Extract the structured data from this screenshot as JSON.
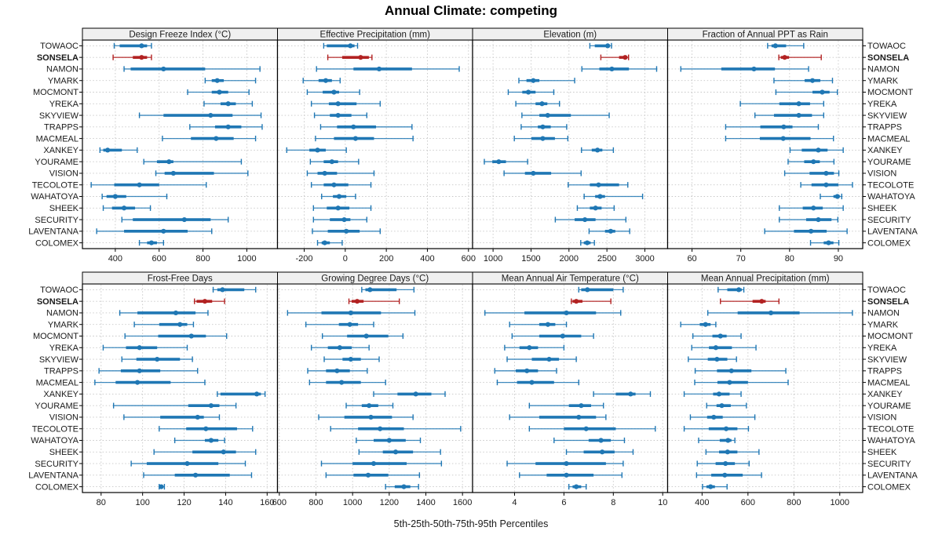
{
  "title": "Annual Climate: competing",
  "xlabel": "5th-25th-50th-75th-95th Percentiles",
  "chart_data": {
    "type": "dot-whisker-trellis",
    "title": "Annual Climate: competing",
    "xlabel": "5th-25th-50th-75th-95th Percentiles",
    "percentiles": [
      5,
      25,
      50,
      75,
      95
    ],
    "highlight_station": "SONSELA",
    "colors": {
      "series": "#1f77b4",
      "highlight": "#b22222",
      "grid": "#c6c6c6",
      "header_bg": "#f0f0f0",
      "border": "#000000",
      "label": "#1a1a1a"
    },
    "layout": {
      "rows": 2,
      "cols": 4,
      "grid": "dotted",
      "legend": "none",
      "station_labels": "both-sides"
    },
    "stations": [
      "TOWAOC",
      "SONSELA",
      "NAMON",
      "YMARK",
      "MOCMONT",
      "YREKA",
      "SKYVIEW",
      "TRAPPS",
      "MACMEAL",
      "XANKEY",
      "YOURAME",
      "VISION",
      "TECOLOTE",
      "WAHATOYA",
      "SHEEK",
      "SECURITY",
      "LAVENTANA",
      "COLOMEX"
    ],
    "panels": [
      {
        "title": "Design Freeze Index (°C)",
        "xlim": [
          250,
          1140
        ],
        "ticks": [
          400,
          600,
          800,
          1000
        ],
        "values": [
          [
            395,
            420,
            520,
            545,
            565
          ],
          [
            390,
            480,
            520,
            545,
            565
          ],
          [
            440,
            470,
            620,
            810,
            1060
          ],
          [
            810,
            840,
            865,
            895,
            1040
          ],
          [
            730,
            840,
            875,
            915,
            1010
          ],
          [
            805,
            880,
            915,
            950,
            1025
          ],
          [
            510,
            620,
            835,
            935,
            1065
          ],
          [
            740,
            855,
            915,
            975,
            1070
          ],
          [
            615,
            745,
            860,
            940,
            1040
          ],
          [
            330,
            345,
            365,
            430,
            500
          ],
          [
            530,
            590,
            645,
            665,
            975
          ],
          [
            585,
            625,
            665,
            850,
            1005
          ],
          [
            290,
            395,
            510,
            600,
            815
          ],
          [
            340,
            360,
            400,
            450,
            635
          ],
          [
            345,
            385,
            440,
            490,
            560
          ],
          [
            430,
            480,
            715,
            835,
            915
          ],
          [
            315,
            440,
            620,
            730,
            840
          ],
          [
            510,
            545,
            565,
            590,
            620
          ]
        ]
      },
      {
        "title": "Effective Precipitation (mm)",
        "xlim": [
          -330,
          620
        ],
        "ticks": [
          -200,
          0,
          200,
          400,
          600
        ],
        "values": [
          [
            -105,
            -90,
            25,
            45,
            60
          ],
          [
            -85,
            -15,
            75,
            115,
            130
          ],
          [
            -140,
            40,
            165,
            325,
            555
          ],
          [
            -205,
            -130,
            -95,
            -65,
            -25
          ],
          [
            -185,
            -110,
            -55,
            -30,
            70
          ],
          [
            -165,
            -80,
            -35,
            55,
            170
          ],
          [
            -150,
            -75,
            -35,
            30,
            105
          ],
          [
            -120,
            -40,
            40,
            150,
            325
          ],
          [
            -145,
            -55,
            50,
            140,
            330
          ],
          [
            -285,
            -175,
            -135,
            -95,
            5
          ],
          [
            -170,
            -105,
            -65,
            -35,
            65
          ],
          [
            -185,
            -135,
            -100,
            -40,
            140
          ],
          [
            -165,
            -105,
            -55,
            15,
            125
          ],
          [
            -115,
            -60,
            -30,
            5,
            50
          ],
          [
            -155,
            -90,
            -35,
            20,
            125
          ],
          [
            -155,
            -75,
            -5,
            25,
            105
          ],
          [
            -160,
            -85,
            5,
            70,
            170
          ],
          [
            -135,
            -115,
            -100,
            -75,
            -15
          ]
        ]
      },
      {
        "title": "Elevation (m)",
        "xlim": [
          730,
          3300
        ],
        "ticks": [
          1000,
          1500,
          2000,
          2500,
          3000
        ],
        "values": [
          [
            2275,
            2340,
            2510,
            2540,
            2560
          ],
          [
            2420,
            2660,
            2740,
            2770,
            2785
          ],
          [
            2170,
            2400,
            2565,
            2790,
            3155
          ],
          [
            1340,
            1440,
            1530,
            1610,
            2075
          ],
          [
            1200,
            1385,
            1465,
            1560,
            1800
          ],
          [
            1300,
            1560,
            1645,
            1715,
            1875
          ],
          [
            1380,
            1610,
            1720,
            2025,
            2530
          ],
          [
            1370,
            1590,
            1655,
            1760,
            1970
          ],
          [
            1280,
            1505,
            1655,
            1815,
            1985
          ],
          [
            2165,
            2300,
            2375,
            2440,
            2585
          ],
          [
            885,
            990,
            1075,
            1170,
            1455
          ],
          [
            1145,
            1420,
            1530,
            1765,
            2160
          ],
          [
            1990,
            2275,
            2390,
            2660,
            2775
          ],
          [
            2200,
            2345,
            2410,
            2475,
            2970
          ],
          [
            2110,
            2275,
            2350,
            2430,
            2595
          ],
          [
            1820,
            2075,
            2210,
            2350,
            2750
          ],
          [
            2265,
            2475,
            2550,
            2610,
            2800
          ],
          [
            2155,
            2195,
            2240,
            2285,
            2335
          ]
        ]
      },
      {
        "title": "Fraction of Annual PPT as Rain",
        "xlim": [
          55,
          95
        ],
        "ticks": [
          60,
          70,
          80,
          90
        ],
        "values": [
          [
            75.5,
            76.3,
            77.1,
            79.3,
            82.9
          ],
          [
            77.8,
            78.2,
            79.0,
            79.9,
            86.5
          ],
          [
            57.7,
            66.0,
            72.7,
            77.0,
            83.9
          ],
          [
            76.8,
            83.1,
            84.7,
            86.3,
            88.8
          ],
          [
            77.2,
            84.7,
            86.7,
            88.2,
            89.8
          ],
          [
            69.9,
            77.9,
            81.9,
            84.2,
            87.0
          ],
          [
            72.9,
            76.8,
            81.9,
            84.6,
            87.0
          ],
          [
            66.9,
            74.0,
            78.8,
            80.6,
            85.9
          ],
          [
            66.9,
            73.9,
            78.7,
            84.3,
            89.0
          ],
          [
            80.1,
            82.5,
            85.9,
            87.8,
            91.0
          ],
          [
            79.7,
            83.0,
            84.9,
            86.2,
            89.1
          ],
          [
            79.0,
            84.1,
            87.5,
            89.1,
            90.1
          ],
          [
            82.3,
            84.5,
            87.5,
            90.0,
            92.9
          ],
          [
            86.3,
            89.0,
            89.8,
            90.3,
            90.7
          ],
          [
            77.9,
            82.7,
            84.9,
            86.8,
            91.0
          ],
          [
            77.9,
            83.4,
            85.9,
            88.6,
            89.9
          ],
          [
            74.9,
            80.9,
            84.4,
            87.6,
            91.8
          ],
          [
            84.3,
            87.0,
            88.0,
            89.0,
            90.1
          ]
        ]
      },
      {
        "title": "Frost-Free Days",
        "xlim": [
          71,
          165
        ],
        "ticks": [
          80,
          100,
          120,
          140,
          160
        ],
        "values": [
          [
            134,
            136,
            138.5,
            149,
            154.5
          ],
          [
            125,
            126,
            130,
            133.5,
            139.5
          ],
          [
            89,
            97.5,
            116,
            125.5,
            131.5
          ],
          [
            96,
            108,
            118,
            121.5,
            124.5
          ],
          [
            91.5,
            107.5,
            123.5,
            130.5,
            140.5
          ],
          [
            81,
            92,
            98.5,
            107,
            121.5
          ],
          [
            90,
            97,
            107,
            118,
            124
          ],
          [
            79,
            89.5,
            98.5,
            108.5,
            126.5
          ],
          [
            77,
            87,
            97.5,
            113.5,
            130
          ],
          [
            136,
            137.5,
            155,
            157,
            159
          ],
          [
            86,
            122,
            133,
            137,
            145
          ],
          [
            91,
            108.5,
            126.5,
            129.5,
            137
          ],
          [
            108,
            121,
            130.5,
            145.5,
            153
          ],
          [
            115.5,
            130,
            133,
            136.5,
            139.5
          ],
          [
            105.5,
            124,
            139,
            145,
            154.5
          ],
          [
            94.5,
            102,
            121.5,
            136.5,
            149.5
          ],
          [
            100.5,
            115.5,
            125.5,
            142,
            152.5
          ],
          [
            108,
            108.5,
            109,
            109.8,
            110.5
          ]
        ]
      },
      {
        "title": "Growing Degree Days (°C)",
        "xlim": [
          590,
          1655
        ],
        "ticks": [
          600,
          800,
          1000,
          1200,
          1400,
          1600
        ],
        "values": [
          [
            1050,
            1070,
            1095,
            1240,
            1335
          ],
          [
            980,
            995,
            1025,
            1060,
            1255
          ],
          [
            645,
            830,
            990,
            1155,
            1340
          ],
          [
            745,
            925,
            985,
            1030,
            1115
          ],
          [
            835,
            970,
            1075,
            1195,
            1275
          ],
          [
            775,
            865,
            930,
            995,
            1090
          ],
          [
            845,
            945,
            990,
            1045,
            1145
          ],
          [
            755,
            855,
            915,
            985,
            1080
          ],
          [
            765,
            855,
            940,
            1045,
            1180
          ],
          [
            1115,
            1245,
            1345,
            1430,
            1505
          ],
          [
            965,
            1050,
            1090,
            1140,
            1220
          ],
          [
            815,
            955,
            1100,
            1215,
            1330
          ],
          [
            880,
            1030,
            1150,
            1280,
            1590
          ],
          [
            1020,
            1115,
            1200,
            1290,
            1370
          ],
          [
            1035,
            1165,
            1235,
            1330,
            1480
          ],
          [
            830,
            1000,
            1115,
            1295,
            1485
          ],
          [
            855,
            1005,
            1085,
            1195,
            1365
          ],
          [
            1180,
            1230,
            1280,
            1315,
            1360
          ]
        ]
      },
      {
        "title": "Mean Annual Air Temperature (°C)",
        "xlim": [
          2.3,
          10.2
        ],
        "ticks": [
          4,
          6,
          8,
          10
        ],
        "values": [
          [
            6.6,
            6.7,
            6.95,
            8.0,
            8.4
          ],
          [
            6.3,
            6.35,
            6.5,
            6.75,
            7.9
          ],
          [
            2.8,
            4.4,
            6.1,
            7.3,
            8.3
          ],
          [
            3.8,
            5.0,
            5.35,
            5.65,
            6.1
          ],
          [
            3.9,
            5.0,
            5.95,
            6.7,
            7.2
          ],
          [
            3.6,
            4.2,
            4.6,
            4.95,
            6.0
          ],
          [
            3.7,
            4.7,
            5.4,
            5.8,
            6.5
          ],
          [
            3.2,
            4.05,
            4.5,
            4.95,
            5.7
          ],
          [
            3.3,
            4.1,
            4.7,
            5.6,
            6.6
          ],
          [
            7.2,
            8.1,
            8.7,
            8.9,
            9.5
          ],
          [
            4.6,
            6.2,
            6.7,
            7.1,
            7.6
          ],
          [
            3.8,
            5.0,
            6.6,
            7.3,
            7.7
          ],
          [
            4.6,
            6.0,
            6.9,
            8.1,
            9.7
          ],
          [
            5.6,
            7.0,
            7.5,
            7.9,
            8.45
          ],
          [
            6.1,
            6.8,
            7.55,
            8.05,
            8.8
          ],
          [
            3.7,
            4.85,
            6.1,
            7.7,
            8.4
          ],
          [
            4.2,
            5.3,
            6.1,
            7.2,
            8.35
          ],
          [
            6.2,
            6.35,
            6.5,
            6.7,
            6.9
          ]
        ]
      },
      {
        "title": "Mean Annual Precipitation (mm)",
        "xlim": [
          250,
          1100
        ],
        "ticks": [
          400,
          600,
          800,
          1000
        ],
        "values": [
          [
            470,
            510,
            560,
            573,
            582
          ],
          [
            480,
            620,
            660,
            677,
            735
          ],
          [
            425,
            555,
            700,
            825,
            1055
          ],
          [
            307,
            390,
            415,
            437,
            460
          ],
          [
            360,
            445,
            480,
            507,
            570
          ],
          [
            355,
            430,
            460,
            530,
            635
          ],
          [
            340,
            425,
            465,
            510,
            550
          ],
          [
            370,
            465,
            528,
            615,
            765
          ],
          [
            368,
            467,
            520,
            600,
            775
          ],
          [
            322,
            448,
            474,
            520,
            570
          ],
          [
            420,
            463,
            486,
            525,
            593
          ],
          [
            349,
            422,
            451,
            490,
            630
          ],
          [
            322,
            429,
            505,
            554,
            602
          ],
          [
            385,
            477,
            513,
            528,
            543
          ],
          [
            417,
            474,
            511,
            554,
            648
          ],
          [
            379,
            459,
            502,
            543,
            605
          ],
          [
            376,
            440,
            499,
            577,
            659
          ],
          [
            402,
            419,
            437,
            456,
            509
          ]
        ]
      }
    ]
  }
}
